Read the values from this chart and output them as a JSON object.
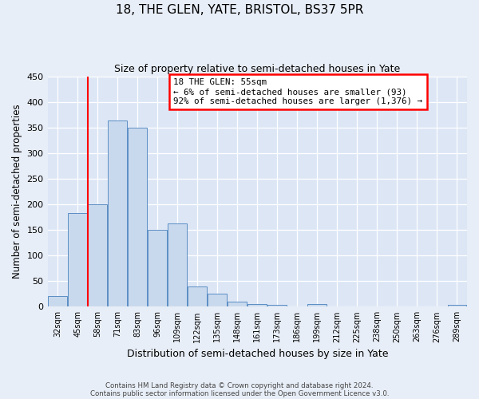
{
  "title": "18, THE GLEN, YATE, BRISTOL, BS37 5PR",
  "subtitle": "Size of property relative to semi-detached houses in Yate",
  "xlabel": "Distribution of semi-detached houses by size in Yate",
  "ylabel": "Number of semi-detached properties",
  "bin_labels": [
    "32sqm",
    "45sqm",
    "58sqm",
    "71sqm",
    "83sqm",
    "96sqm",
    "109sqm",
    "122sqm",
    "135sqm",
    "148sqm",
    "161sqm",
    "173sqm",
    "186sqm",
    "199sqm",
    "212sqm",
    "225sqm",
    "238sqm",
    "250sqm",
    "263sqm",
    "276sqm",
    "289sqm"
  ],
  "bar_heights": [
    20,
    183,
    200,
    363,
    350,
    150,
    163,
    40,
    25,
    10,
    5,
    3,
    0,
    5,
    0,
    0,
    0,
    0,
    0,
    0,
    4
  ],
  "bar_color": "#c9d9ed",
  "bar_edge_color": "#5b8ec4",
  "fig_bg_color": "#e8eef7",
  "ax_bg_color": "#dce6f5",
  "grid_color": "#ffffff",
  "ylim": [
    0,
    450
  ],
  "yticks": [
    0,
    50,
    100,
    150,
    200,
    250,
    300,
    350,
    400,
    450
  ],
  "redline_x": 1.5,
  "annotation_title": "18 THE GLEN: 55sqm",
  "annotation_line1": "← 6% of semi-detached houses are smaller (93)",
  "annotation_line2": "92% of semi-detached houses are larger (1,376) →",
  "footer1": "Contains HM Land Registry data © Crown copyright and database right 2024.",
  "footer2": "Contains public sector information licensed under the Open Government Licence v3.0."
}
